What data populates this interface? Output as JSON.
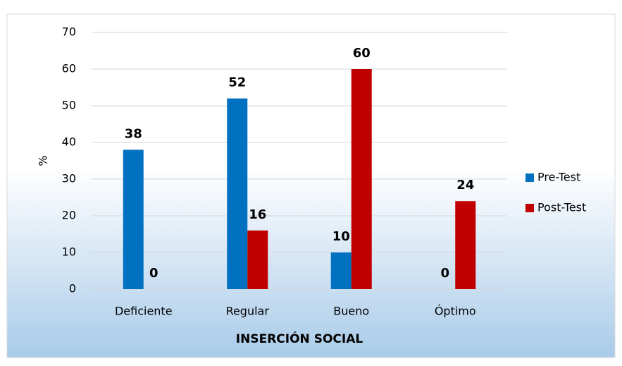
{
  "chart_data": {
    "type": "bar",
    "categories": [
      "Deficiente",
      "Regular",
      "Bueno",
      "Óptimo"
    ],
    "series": [
      {
        "name": "Pre-Test",
        "color": "#0070c0",
        "values": [
          38,
          52,
          10,
          0
        ]
      },
      {
        "name": "Post-Test",
        "color": "#c00000",
        "values": [
          0,
          16,
          60,
          24
        ]
      }
    ],
    "ylabel": "%",
    "xlabel": "INSERCIÓN SOCIAL",
    "ylim": [
      0,
      70
    ],
    "yticks": [
      0,
      10,
      20,
      30,
      40,
      50,
      60,
      70
    ],
    "grid": true,
    "legend": "right"
  }
}
